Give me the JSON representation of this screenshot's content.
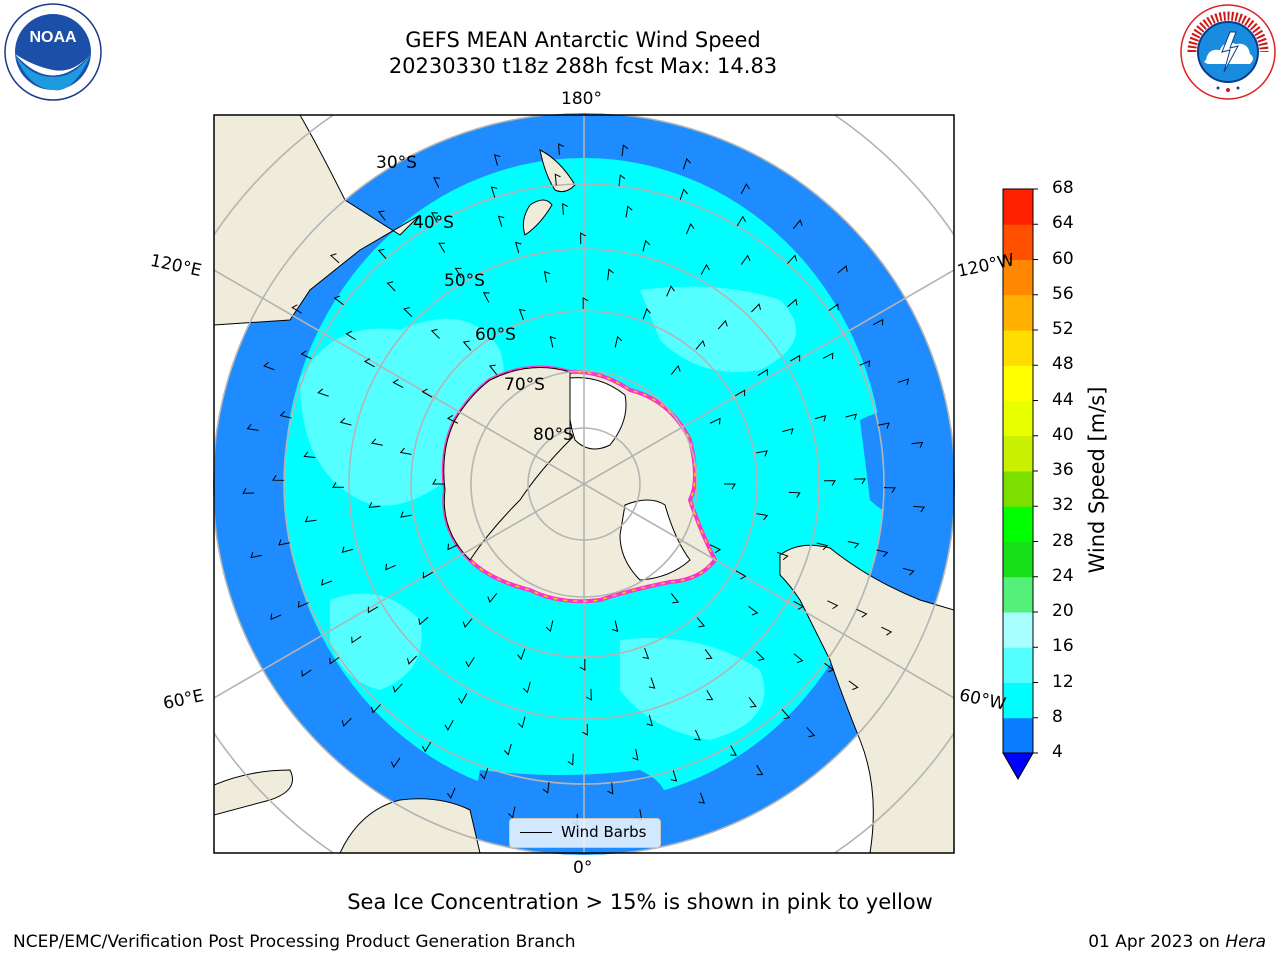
{
  "title": {
    "line1": "GEFS MEAN Antarctic Wind Speed",
    "line2": "20230330 t18z 288h fcst   Max: 14.83"
  },
  "map": {
    "projection": "south-polar-stereographic",
    "longitude_labels": {
      "top": "180°",
      "left_upper": "120°E",
      "right_upper": "120°W",
      "left_lower": "60°E",
      "right_lower": "60°W",
      "bottom": "0°"
    },
    "latitude_labels": [
      "30°S",
      "40°S",
      "50°S",
      "60°S",
      "70°S",
      "80°S"
    ],
    "legend_label": "Wind Barbs",
    "colors": {
      "land": "#efecdc",
      "ice_shelf": "#ffffff",
      "ocean_4_8": "#1e8cff",
      "ocean_8_12": "#00ffff",
      "ocean_12_16": "#55ffff",
      "sea_ice_edge": "#ff33cc"
    }
  },
  "colorbar": {
    "label": "Wind Speed [m/s]",
    "ticks": [
      "68",
      "64",
      "60",
      "56",
      "52",
      "48",
      "44",
      "40",
      "36",
      "32",
      "28",
      "24",
      "20",
      "16",
      "12",
      "8",
      "4"
    ],
    "colors": [
      "#0000ff",
      "#0a7cff",
      "#00ffff",
      "#55ffff",
      "#a8ffff",
      "#55f07a",
      "#18e018",
      "#00ff00",
      "#7be000",
      "#c8f000",
      "#e8ff00",
      "#ffff00",
      "#ffdd00",
      "#ffb000",
      "#ff8800",
      "#ff5000",
      "#ff2000",
      "#ff0000"
    ]
  },
  "notes": {
    "sea_ice": "Sea Ice Concentration > 15% is shown in pink to yellow"
  },
  "footer": {
    "left": "NCEP/EMC/Verification Post Processing Product Generation Branch",
    "right_date": "01 Apr 2023 on ",
    "right_host": "Hera"
  },
  "logos": {
    "left": "NOAA",
    "right": "NATIONAL WEATHER SERVICE"
  }
}
